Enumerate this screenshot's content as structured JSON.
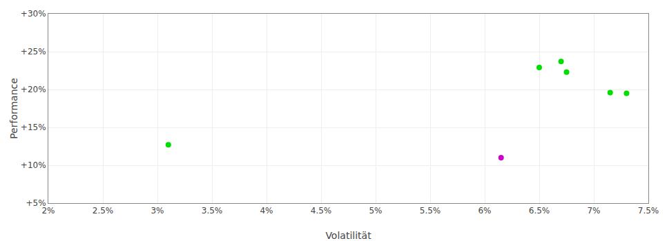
{
  "chart_data": {
    "type": "scatter",
    "xlabel": "Volatilität",
    "ylabel": "Performance",
    "x": [
      0.031,
      0.0615,
      0.065,
      0.067,
      0.0675,
      0.0715,
      0.073
    ],
    "values": [
      0.127,
      0.11,
      0.229,
      0.237,
      0.223,
      0.196,
      0.195
    ],
    "colors": [
      "#00dd00",
      "#cc00cc",
      "#00dd00",
      "#00dd00",
      "#00dd00",
      "#00dd00",
      "#00dd00"
    ],
    "xlim": [
      0.02,
      0.075
    ],
    "ylim": [
      0.05,
      0.3
    ],
    "xticks": [
      {
        "value": 0.02,
        "label": "2%"
      },
      {
        "value": 0.025,
        "label": "2.5%"
      },
      {
        "value": 0.03,
        "label": "3%"
      },
      {
        "value": 0.035,
        "label": "3.5%"
      },
      {
        "value": 0.04,
        "label": "4%"
      },
      {
        "value": 0.045,
        "label": "4.5%"
      },
      {
        "value": 0.05,
        "label": "5%"
      },
      {
        "value": 0.055,
        "label": "5.5%"
      },
      {
        "value": 0.06,
        "label": "6%"
      },
      {
        "value": 0.065,
        "label": "6.5%"
      },
      {
        "value": 0.07,
        "label": "7%"
      },
      {
        "value": 0.075,
        "label": "7.5%"
      }
    ],
    "yticks": [
      {
        "value": 0.05,
        "label": "+5%"
      },
      {
        "value": 0.1,
        "label": "+10%"
      },
      {
        "value": 0.15,
        "label": "+15%"
      },
      {
        "value": 0.2,
        "label": "+20%"
      },
      {
        "value": 0.25,
        "label": "+25%"
      },
      {
        "value": 0.3,
        "label": "+30%"
      }
    ],
    "grid": true
  }
}
